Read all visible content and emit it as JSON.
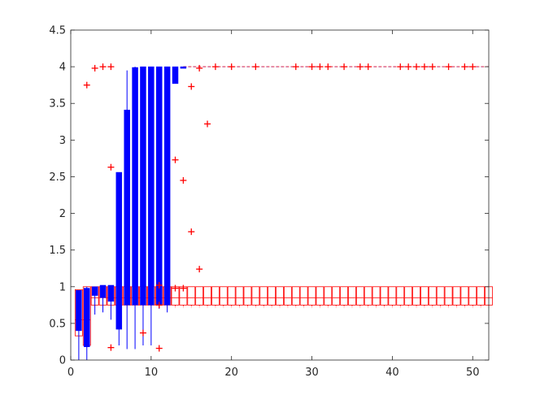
{
  "chart_data": {
    "type": "box",
    "title": "",
    "xlabel": "",
    "ylabel": "",
    "xlim": [
      0,
      52
    ],
    "ylim": [
      0,
      4.5
    ],
    "x_ticks": [
      "0",
      "10",
      "20",
      "30",
      "40",
      "50"
    ],
    "x_tick_values": [
      0,
      10,
      20,
      30,
      40,
      50
    ],
    "y_ticks": [
      "0",
      "0.5",
      "1",
      "1.5",
      "2",
      "2.5",
      "3",
      "3.5",
      "4",
      "4.5"
    ],
    "y_tick_values": [
      0,
      0.5,
      1,
      1.5,
      2,
      2.5,
      3,
      3.5,
      4,
      4.5
    ],
    "grid": false,
    "legend": "none",
    "colors": {
      "series_a": "#0000ff",
      "series_b": "#ff0000"
    },
    "series": [
      {
        "color": "#0000ff",
        "style": "filled-box",
        "positions": [
          1,
          2,
          3,
          4,
          5,
          6,
          7,
          8,
          9,
          10,
          11,
          12,
          13,
          14
        ],
        "q1": [
          0.4,
          0.18,
          0.88,
          0.85,
          0.8,
          0.42,
          0.75,
          0.75,
          0.75,
          0.75,
          0.75,
          0.75,
          3.77,
          3.99
        ],
        "q3": [
          0.95,
          0.98,
          1.0,
          1.02,
          1.02,
          2.56,
          3.41,
          3.99,
          4.0,
          4.0,
          4.0,
          4.0,
          4.0,
          4.0
        ],
        "median": [
          0.7,
          0.6,
          0.95,
          0.95,
          0.95,
          0.85,
          0.9,
          0.9,
          1.0,
          1.0,
          1.0,
          1.0,
          4.0,
          4.0
        ],
        "whisker_low": [
          0.0,
          0.0,
          0.62,
          0.65,
          0.55,
          0.2,
          0.15,
          0.15,
          0.2,
          0.2,
          0.7,
          0.65,
          3.77,
          3.99
        ],
        "whisker_high": [
          0.95,
          1.0,
          1.0,
          1.02,
          1.02,
          2.56,
          3.95,
          4.0,
          4.0,
          4.0,
          4.0,
          4.0,
          4.0,
          4.0
        ],
        "outliers": [],
        "dashed_median_to": 52,
        "dashed_median_value": 4.0
      },
      {
        "color": "#ff0000",
        "style": "outline-box",
        "positions": [
          1,
          2,
          3,
          4,
          5,
          6,
          7,
          8,
          9,
          10,
          11,
          12,
          13,
          14,
          15,
          16,
          17,
          18,
          19,
          20,
          21,
          22,
          23,
          24,
          25,
          26,
          27,
          28,
          29,
          30,
          31,
          32,
          33,
          34,
          35,
          36,
          37,
          38,
          39,
          40,
          41,
          42,
          43,
          44,
          45,
          46,
          47,
          48,
          49,
          50,
          51,
          52
        ],
        "q1": 0.75,
        "q3": 1.0,
        "median": 0.85,
        "whisker_low": 0.75,
        "whisker_high": 1.0,
        "early_q1": [
          0.33,
          0.2,
          0.75,
          0.75,
          0.75
        ],
        "early_q3": [
          0.96,
          1.0,
          1.0,
          1.0,
          1.0
        ],
        "early_median": [
          0.55,
          0.55,
          0.85,
          0.85,
          0.85
        ],
        "outliers": [
          [
            2,
            3.75
          ],
          [
            3,
            3.98
          ],
          [
            4,
            4.0
          ],
          [
            5,
            4.0
          ],
          [
            5,
            0.17
          ],
          [
            5,
            2.63
          ],
          [
            9,
            0.37
          ],
          [
            11,
            0.16
          ],
          [
            11,
            1.02
          ],
          [
            11,
            0.75
          ],
          [
            13,
            2.73
          ],
          [
            13,
            0.98
          ],
          [
            14,
            2.45
          ],
          [
            14,
            0.98
          ],
          [
            15,
            3.73
          ],
          [
            15,
            1.75
          ],
          [
            16,
            1.24
          ],
          [
            16,
            3.98
          ],
          [
            17,
            3.22
          ],
          [
            18,
            4.0
          ],
          [
            20,
            4.0
          ],
          [
            23,
            4.0
          ],
          [
            28,
            4.0
          ],
          [
            30,
            4.0
          ],
          [
            31,
            4.0
          ],
          [
            32,
            4.0
          ],
          [
            34,
            4.0
          ],
          [
            36,
            4.0
          ],
          [
            37,
            4.0
          ],
          [
            41,
            4.0
          ],
          [
            42,
            4.0
          ],
          [
            43,
            4.0
          ],
          [
            44,
            4.0
          ],
          [
            45,
            4.0
          ],
          [
            47,
            4.0
          ],
          [
            49,
            4.0
          ],
          [
            50,
            4.0
          ]
        ],
        "dashed_median_to": 52,
        "dashed_median_value": 4.0
      }
    ]
  }
}
